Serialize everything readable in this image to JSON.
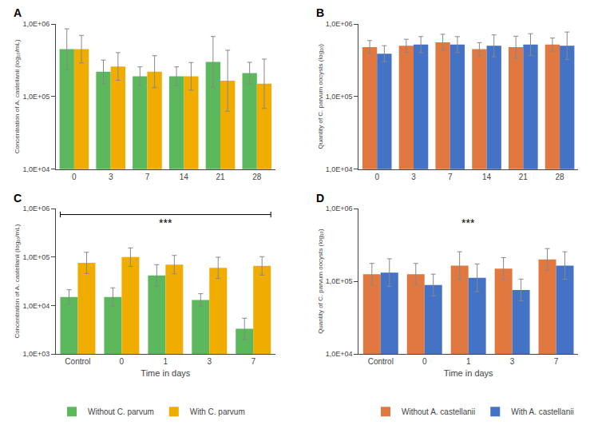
{
  "chart_data": [
    {
      "type": "bar",
      "title": "A",
      "categories": [
        "0",
        "3",
        "7",
        "14",
        "21",
        "28"
      ],
      "series": [
        {
          "name": "Without C. parvum",
          "color": "#5cb85c",
          "values": [
            450000,
            220000,
            190000,
            190000,
            300000,
            210000
          ],
          "error_minus": [
            213837,
            67797,
            49151,
            49151,
            165995,
            61331
          ],
          "error_plus": [
            407457,
            97997,
            66303,
            66303,
            371616,
            86633
          ]
        },
        {
          "name": "With C. parvum",
          "color": "#f0ad00",
          "values": [
            450000,
            260000,
            220000,
            190000,
            165000,
            150000
          ],
          "error_minus": [
            159456,
            92130,
            87437,
            67326,
            102269,
            81437
          ],
          "error_plus": [
            246968,
            142692,
            145109,
            104275,
            268994,
            178164
          ]
        }
      ],
      "ylabel": "Concentration of A. castellanii (log₁₀/mL)",
      "log": "y",
      "ylim": [
        10000,
        1000000
      ],
      "yticks": [
        {
          "value": 10000,
          "label": "1,0E+04"
        },
        {
          "value": 100000,
          "label": "1,0E+05"
        },
        {
          "value": 1000000,
          "label": "1,0E+06"
        }
      ],
      "grid": false,
      "legend": "lower left"
    },
    {
      "type": "bar",
      "title": "B",
      "categories": [
        "0",
        "3",
        "7",
        "14",
        "21",
        "28"
      ],
      "series": [
        {
          "name": "Without A. castellanii",
          "color": "#e07840",
          "values": [
            480000,
            500000,
            560000,
            450000,
            480000,
            520000
          ],
          "error_minus": [
            89841,
            93585,
            125302,
            84226,
            140186,
            97328
          ],
          "error_plus": [
            110529,
            115135,
            161420,
            103621,
            198018,
            119740
          ]
        },
        {
          "name": "With A. castellanii",
          "color": "#4472c4",
          "values": [
            390000,
            520000,
            520000,
            500000,
            520000,
            500000
          ],
          "error_minus": [
            87264,
            116352,
            116352,
            146027,
            151868,
            177173
          ],
          "error_plus": [
            112418,
            149890,
            149890,
            206269,
            214520,
            274409
          ]
        }
      ],
      "ylabel": "Quantity of C. parvum oocysts (log₁₀)",
      "log": "y",
      "ylim": [
        10000,
        1000000
      ],
      "yticks": [
        {
          "value": 10000,
          "label": "1,0E+04"
        },
        {
          "value": 100000,
          "label": "1,0E+05"
        },
        {
          "value": 1000000,
          "label": "1,0E+06"
        }
      ],
      "grid": false,
      "legend": "lower right"
    },
    {
      "type": "bar",
      "title": "C",
      "categories": [
        "Control",
        "0",
        "1",
        "3",
        "7"
      ],
      "series": [
        {
          "name": "Without C. parvum",
          "color": "#5cb85c",
          "values": [
            15000,
            15000,
            42000,
            13000,
            3300
          ],
          "error_minus": [
            4380.8,
            5315.2,
            16692.5,
            3363.0,
            1311.6
          ],
          "error_plus": [
            6188.1,
            8232.3,
            27702.7,
            4536.5,
            2176.6
          ]
        },
        {
          "name": "With C. parvum",
          "color": "#f0ad00",
          "values": [
            76000,
            100000,
            70000,
            60000,
            66000
          ],
          "error_minus": [
            30205,
            35435,
            24804,
            23846,
            23387
          ],
          "error_plus": [
            50129,
            54882,
            38417,
            39575,
            36222
          ]
        }
      ],
      "xlabel": "Time in days",
      "ylabel": "Concentration of A. castellanii (log₁₀/mL)",
      "log": "y",
      "ylim": [
        1000,
        1000000
      ],
      "yticks": [
        {
          "value": 1000,
          "label": "1,0E+03"
        },
        {
          "value": 10000,
          "label": "1,0E+04"
        },
        {
          "value": 100000,
          "label": "1,0E+05"
        },
        {
          "value": 1000000,
          "label": "1,0E+06"
        }
      ],
      "annotations": [
        {
          "text": "***",
          "bracket": [
            "Control",
            "7"
          ]
        }
      ],
      "grid": false,
      "legend": "lower left"
    },
    {
      "type": "bar",
      "title": "D",
      "categories": [
        "Control",
        "0",
        "1",
        "3",
        "7"
      ],
      "series": [
        {
          "name": "Without A. castellanii",
          "color": "#e07840",
          "values": [
            125000,
            125000,
            165000,
            150000,
            200000
          ],
          "error_minus": [
            36507,
            36507,
            58467,
            43808,
            58411
          ],
          "error_plus": [
            51567,
            51567,
            90555,
            61881,
            82508
          ]
        },
        {
          "name": "With A. castellanii",
          "color": "#4472c4",
          "values": [
            132000,
            89000,
            112000,
            76000,
            165000
          ],
          "error_minus": [
            46774,
            25993,
            39687,
            22196,
            58467
          ],
          "error_plus": [
            72444,
            36716,
            61468,
            31353,
            90555
          ]
        }
      ],
      "xlabel": "Time in days",
      "ylabel": "Quantity of C. parvum oocysts (log₁₀)",
      "log": "y",
      "ylim": [
        10000,
        1000000
      ],
      "yticks": [
        {
          "value": 10000,
          "label": "1,0E+04"
        },
        {
          "value": 100000,
          "label": "1,0E+05"
        },
        {
          "value": 1000000,
          "label": "1,0E+06"
        }
      ],
      "annotations": [
        {
          "text": "***"
        }
      ],
      "grid": false,
      "legend": "lower right"
    }
  ]
}
